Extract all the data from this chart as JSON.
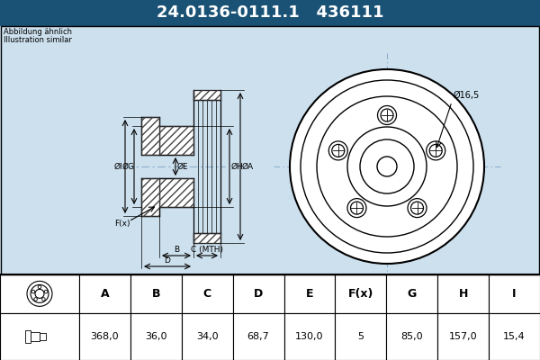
{
  "title_text": "24.0136-0111.1   436111",
  "title_bg": "#1a5276",
  "title_color": "#ffffff",
  "bg_color": "#cde0ee",
  "black": "#000000",
  "white": "#ffffff",
  "note_line1": "Abbildung ähnlich",
  "note_line2": "Illustration similar",
  "dim_label": "Ø16,5",
  "label_fx": "F(x)",
  "label_b": "B",
  "label_c": "C (MTH)",
  "label_d": "D",
  "label_OI": "ØI",
  "label_OG": "ØG",
  "label_OE": "ØE",
  "label_OH": "ØH",
  "label_OA": "ØA",
  "table_headers": [
    "A",
    "B",
    "C",
    "D",
    "E",
    "F(x)",
    "G",
    "H",
    "I"
  ],
  "table_values": [
    "368,0",
    "36,0",
    "34,0",
    "68,7",
    "130,0",
    "5",
    "85,0",
    "157,0",
    "15,4"
  ],
  "crosshair_color": "#8ab0cc",
  "hatch_color": "#444444",
  "dim_color": "#000000"
}
